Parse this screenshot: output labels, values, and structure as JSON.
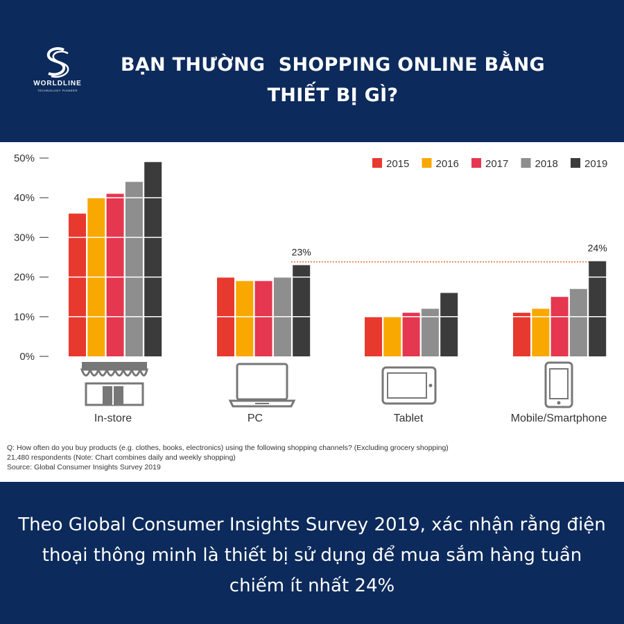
{
  "header": {
    "title_lines": [
      "BẠN THƯỜNG  SHOPPING ONLINE BẰNG",
      "THIẾT BỊ GÌ?"
    ],
    "logo": {
      "name": "WORLDLINE",
      "tagline": "TECHNOLOGY PIONEER",
      "icon": "worldline-s-logo-icon"
    }
  },
  "chart_data": {
    "type": "bar",
    "categories": [
      "In-store",
      "PC",
      "Tablet",
      "Mobile/Smartphone"
    ],
    "category_icons": [
      "store-icon",
      "laptop-icon",
      "tablet-icon",
      "smartphone-icon"
    ],
    "series": [
      {
        "name": "2015",
        "color": "#e8392f",
        "values": [
          36,
          20,
          10,
          11
        ]
      },
      {
        "name": "2016",
        "color": "#f8a800",
        "values": [
          40,
          19,
          10,
          12
        ]
      },
      {
        "name": "2017",
        "color": "#e5374f",
        "values": [
          41,
          19,
          11,
          15
        ]
      },
      {
        "name": "2018",
        "color": "#8e8e8e",
        "values": [
          44,
          20,
          12,
          17
        ]
      },
      {
        "name": "2019",
        "color": "#3b3b3b",
        "values": [
          49,
          23,
          16,
          24
        ]
      }
    ],
    "y_ticks": [
      "0%",
      "10%",
      "20%",
      "30%",
      "40%",
      "50%"
    ],
    "ylim": [
      0,
      50
    ],
    "grid": "white horizontal lines through bars",
    "legend_position": "top-right",
    "annotations": [
      {
        "text": "23%",
        "category": "PC",
        "series": "2019"
      },
      {
        "text": "24%",
        "category": "Mobile/Smartphone",
        "series": "2019"
      }
    ],
    "reference_line": {
      "value": 24,
      "color": "#e8692f",
      "style": "dotted"
    },
    "notes": [
      "Q: How often do you buy products (e.g. clothes, books, electronics) using the following shopping channels? (Excluding grocery shopping)",
      "21,480 respondents (Note: Chart combines daily and weekly shopping)",
      "Source: Global Consumer Insights Survey 2019"
    ]
  },
  "caption_lines": [
    "Theo Global Consumer Insights Survey 2019, xác nhận rằng điện",
    "thoại thông minh là thiết bị sử dụng để mua sắm hàng tuần",
    "chiếm ít nhất 24%"
  ]
}
